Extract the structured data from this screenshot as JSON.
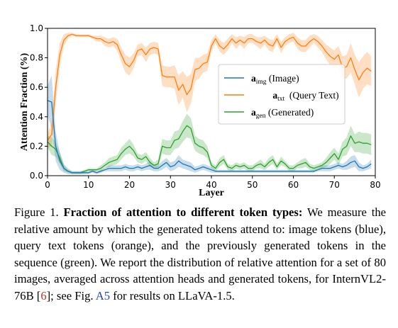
{
  "chart_data": {
    "type": "line",
    "xlabel": "Layer",
    "ylabel": "Attention Fraction (%)",
    "xlim": [
      0,
      80
    ],
    "ylim": [
      0.0,
      1.0
    ],
    "xticks": [
      "0",
      "10",
      "20",
      "30",
      "40",
      "50",
      "60",
      "70",
      "80"
    ],
    "yticks": [
      "0.0",
      "0.2",
      "0.4",
      "0.6",
      "0.8",
      "1.0"
    ],
    "grid": false,
    "legend_position": "center-right",
    "legend_parts": [
      {
        "bold": "a",
        "sub": "img",
        "rest": " (Image)"
      },
      {
        "bold": "a",
        "sub": "txt",
        "rest": "  (Query Text)"
      },
      {
        "bold": "a",
        "sub": "gen",
        "rest": " (Generated)"
      }
    ],
    "x": [
      0,
      1,
      2,
      3,
      4,
      5,
      6,
      7,
      8,
      9,
      10,
      11,
      12,
      13,
      14,
      15,
      16,
      17,
      18,
      19,
      20,
      21,
      22,
      23,
      24,
      25,
      26,
      27,
      28,
      29,
      30,
      31,
      32,
      33,
      34,
      35,
      36,
      37,
      38,
      39,
      40,
      41,
      42,
      43,
      44,
      45,
      46,
      47,
      48,
      49,
      50,
      51,
      52,
      53,
      54,
      55,
      56,
      57,
      58,
      59,
      60,
      61,
      62,
      63,
      64,
      65,
      66,
      67,
      68,
      69,
      70,
      71,
      72,
      73,
      74,
      75,
      76,
      77,
      78,
      79
    ],
    "series": [
      {
        "key": "img",
        "color": "#1f77b4",
        "values": [
          0.51,
          0.5,
          0.2,
          0.1,
          0.05,
          0.03,
          0.02,
          0.02,
          0.02,
          0.02,
          0.02,
          0.03,
          0.02,
          0.03,
          0.04,
          0.05,
          0.05,
          0.05,
          0.05,
          0.06,
          0.05,
          0.05,
          0.06,
          0.05,
          0.06,
          0.07,
          0.05,
          0.05,
          0.07,
          0.09,
          0.06,
          0.07,
          0.1,
          0.08,
          0.07,
          0.06,
          0.04,
          0.05,
          0.06,
          0.05,
          0.04,
          0.03,
          0.03,
          0.03,
          0.03,
          0.03,
          0.03,
          0.03,
          0.03,
          0.03,
          0.03,
          0.03,
          0.03,
          0.03,
          0.03,
          0.03,
          0.03,
          0.03,
          0.03,
          0.03,
          0.03,
          0.03,
          0.03,
          0.03,
          0.03,
          0.03,
          0.04,
          0.05,
          0.05,
          0.05,
          0.06,
          0.07,
          0.06,
          0.07,
          0.09,
          0.1,
          0.06,
          0.05,
          0.06,
          0.08
        ],
        "band": [
          0.1,
          0.18,
          0.1,
          0.06,
          0.03,
          0.02,
          0.01,
          0.01,
          0.01,
          0.01,
          0.01,
          0.01,
          0.01,
          0.01,
          0.01,
          0.02,
          0.02,
          0.02,
          0.02,
          0.02,
          0.02,
          0.02,
          0.02,
          0.02,
          0.02,
          0.03,
          0.02,
          0.02,
          0.03,
          0.03,
          0.03,
          0.03,
          0.04,
          0.03,
          0.03,
          0.03,
          0.02,
          0.02,
          0.02,
          0.02,
          0.02,
          0.01,
          0.01,
          0.01,
          0.01,
          0.01,
          0.01,
          0.01,
          0.01,
          0.01,
          0.01,
          0.01,
          0.01,
          0.01,
          0.01,
          0.01,
          0.01,
          0.01,
          0.01,
          0.01,
          0.01,
          0.01,
          0.01,
          0.01,
          0.01,
          0.01,
          0.01,
          0.02,
          0.02,
          0.02,
          0.02,
          0.02,
          0.02,
          0.03,
          0.04,
          0.04,
          0.03,
          0.02,
          0.02,
          0.03
        ]
      },
      {
        "key": "txt",
        "color": "#ff7f0e",
        "values": [
          0.24,
          0.28,
          0.6,
          0.82,
          0.92,
          0.95,
          0.96,
          0.95,
          0.95,
          0.95,
          0.95,
          0.94,
          0.93,
          0.93,
          0.91,
          0.9,
          0.91,
          0.89,
          0.82,
          0.76,
          0.74,
          0.78,
          0.85,
          0.86,
          0.82,
          0.86,
          0.87,
          0.86,
          0.68,
          0.67,
          0.67,
          0.67,
          0.58,
          0.62,
          0.55,
          0.59,
          0.72,
          0.73,
          0.76,
          0.77,
          0.88,
          0.93,
          0.88,
          0.86,
          0.89,
          0.93,
          0.9,
          0.92,
          0.9,
          0.93,
          0.93,
          0.91,
          0.9,
          0.92,
          0.89,
          0.88,
          0.93,
          0.87,
          0.91,
          0.93,
          0.94,
          0.9,
          0.88,
          0.88,
          0.91,
          0.93,
          0.91,
          0.88,
          0.84,
          0.81,
          0.79,
          0.82,
          0.73,
          0.74,
          0.8,
          0.72,
          0.65,
          0.7,
          0.73,
          0.71
        ],
        "band": [
          0.05,
          0.08,
          0.12,
          0.08,
          0.04,
          0.02,
          0.01,
          0.01,
          0.01,
          0.01,
          0.01,
          0.01,
          0.02,
          0.02,
          0.03,
          0.03,
          0.03,
          0.04,
          0.05,
          0.06,
          0.06,
          0.05,
          0.04,
          0.04,
          0.05,
          0.04,
          0.04,
          0.04,
          0.07,
          0.07,
          0.07,
          0.08,
          0.1,
          0.09,
          0.12,
          0.1,
          0.08,
          0.07,
          0.06,
          0.06,
          0.04,
          0.03,
          0.04,
          0.04,
          0.04,
          0.03,
          0.04,
          0.03,
          0.04,
          0.03,
          0.03,
          0.03,
          0.04,
          0.03,
          0.04,
          0.04,
          0.03,
          0.04,
          0.03,
          0.03,
          0.03,
          0.04,
          0.04,
          0.04,
          0.04,
          0.03,
          0.04,
          0.04,
          0.05,
          0.06,
          0.06,
          0.06,
          0.08,
          0.08,
          0.1,
          0.1,
          0.12,
          0.11,
          0.11,
          0.1
        ]
      },
      {
        "key": "gen",
        "color": "#2ca02c",
        "values": [
          0.23,
          0.2,
          0.18,
          0.12,
          0.05,
          0.03,
          0.02,
          0.02,
          0.02,
          0.03,
          0.04,
          0.04,
          0.04,
          0.05,
          0.07,
          0.09,
          0.1,
          0.11,
          0.15,
          0.18,
          0.2,
          0.17,
          0.12,
          0.11,
          0.13,
          0.09,
          0.07,
          0.08,
          0.2,
          0.19,
          0.19,
          0.24,
          0.25,
          0.3,
          0.34,
          0.32,
          0.22,
          0.2,
          0.19,
          0.16,
          0.07,
          0.05,
          0.09,
          0.11,
          0.06,
          0.05,
          0.07,
          0.06,
          0.07,
          0.05,
          0.05,
          0.07,
          0.08,
          0.06,
          0.09,
          0.11,
          0.06,
          0.1,
          0.08,
          0.05,
          0.05,
          0.07,
          0.08,
          0.09,
          0.06,
          0.05,
          0.06,
          0.07,
          0.09,
          0.12,
          0.15,
          0.11,
          0.18,
          0.2,
          0.27,
          0.22,
          0.23,
          0.22,
          0.22,
          0.21
        ],
        "band": [
          0.04,
          0.06,
          0.05,
          0.04,
          0.02,
          0.01,
          0.01,
          0.01,
          0.01,
          0.01,
          0.01,
          0.01,
          0.01,
          0.02,
          0.02,
          0.03,
          0.03,
          0.03,
          0.04,
          0.04,
          0.05,
          0.04,
          0.03,
          0.03,
          0.03,
          0.03,
          0.02,
          0.03,
          0.05,
          0.05,
          0.05,
          0.06,
          0.06,
          0.07,
          0.08,
          0.07,
          0.05,
          0.05,
          0.05,
          0.04,
          0.02,
          0.02,
          0.03,
          0.03,
          0.02,
          0.02,
          0.02,
          0.02,
          0.02,
          0.02,
          0.02,
          0.02,
          0.03,
          0.02,
          0.03,
          0.03,
          0.02,
          0.03,
          0.02,
          0.02,
          0.02,
          0.02,
          0.03,
          0.03,
          0.02,
          0.02,
          0.02,
          0.02,
          0.03,
          0.04,
          0.04,
          0.04,
          0.05,
          0.06,
          0.07,
          0.06,
          0.07,
          0.07,
          0.07,
          0.07
        ]
      }
    ]
  },
  "caption": {
    "prefix": "Figure 1. ",
    "bold": "Fraction of attention to different token types:",
    "body1": " We measure the relative amount by which the generated tokens attend to: image tokens (blue), query text tokens (orange), and the previously generated tokens in the sequence (green). We report the distribution of relative attention for a set of 80 images, averaged across attention heads and generated tokens, for InternVL2-76B [",
    "ref": "6",
    "body2": "]; see Fig. ",
    "link": "A5",
    "body3": " for results on LLaVA-1.5."
  }
}
